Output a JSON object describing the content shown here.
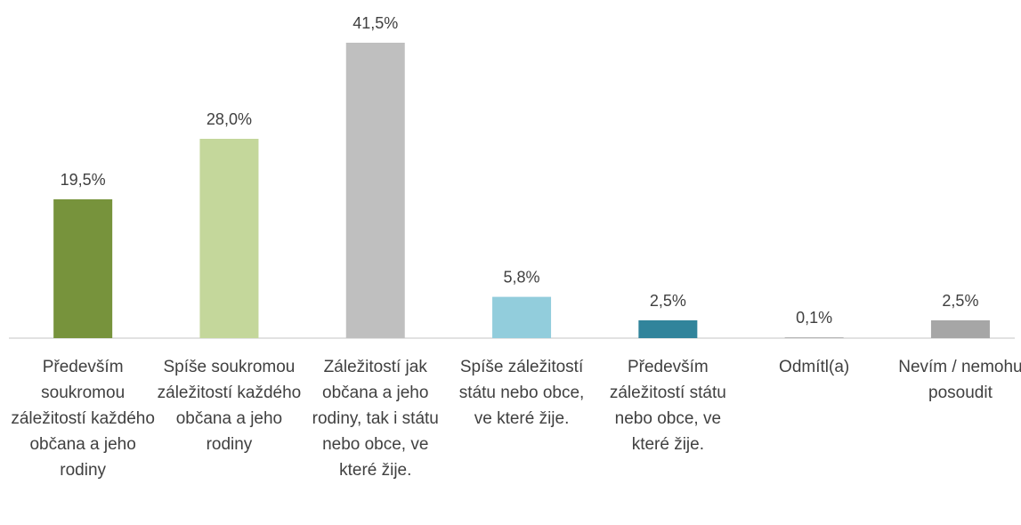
{
  "chart_data": {
    "type": "bar",
    "categories": [
      "Především soukromou záležitostí každého občana a jeho rodiny",
      "Spíše soukromou záležitostí každého občana a jeho rodiny",
      "Záležitostí jak občana a jeho rodiny, tak i státu nebo obce, ve které žije.",
      "Spíše záležitostí státu nebo obce, ve které žije.",
      "Především záležitostí státu nebo obce, ve které žije.",
      "Odmítl(a)",
      "Nevím / nemohu posoudit"
    ],
    "values": [
      19.5,
      28.0,
      41.5,
      5.8,
      2.5,
      0.1,
      2.5
    ],
    "value_labels": [
      "19,5%",
      "28,0%",
      "41,5%",
      "5,8%",
      "2,5%",
      "0,1%",
      "2,5%"
    ],
    "colors": [
      "#77933c",
      "#c4d79b",
      "#bfbfbf",
      "#92cddc",
      "#31849b",
      "#a6a6a6",
      "#a6a6a6"
    ]
  }
}
